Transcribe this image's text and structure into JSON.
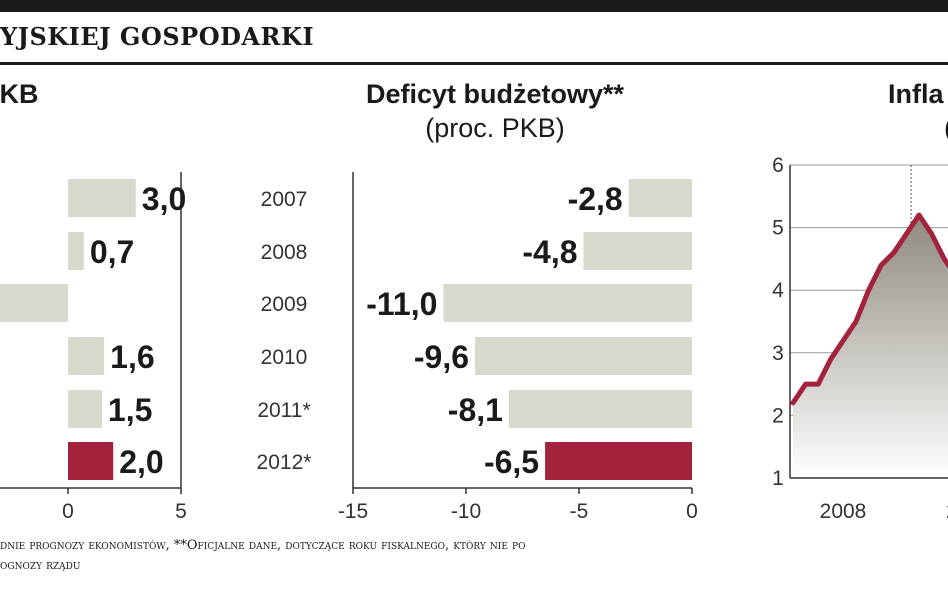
{
  "header": {
    "title": "YJSKIEJ GOSPODARKI"
  },
  "colors": {
    "bar": "#d9d8cc",
    "highlight": "#a3223c",
    "inflation_line": "#a3223c",
    "area_top": "#8f8a7e",
    "area_bottom": "#ffffff"
  },
  "chart_data": [
    {
      "type": "bar",
      "orientation": "horizontal",
      "title": "PKB",
      "subtitle": ")",
      "categories": [
        "",
        "",
        "",
        "",
        "",
        ""
      ],
      "values": [
        3.0,
        0.7,
        -6.0,
        1.6,
        1.5,
        2.0
      ],
      "value_labels": [
        "3,0",
        "0,7",
        "",
        "1,6",
        "1,5",
        "2,0"
      ],
      "highlight_index": 5,
      "xticks": [
        "0",
        "5"
      ],
      "xlim": [
        -6,
        5
      ]
    },
    {
      "type": "bar",
      "orientation": "horizontal",
      "title": "Deficyt budżetowy**",
      "subtitle": "(proc. PKB)",
      "categories": [
        "2007",
        "2008",
        "2009",
        "2010",
        "2011*",
        "2012*"
      ],
      "values": [
        -2.8,
        -4.8,
        -11.0,
        -9.6,
        -8.1,
        -6.5
      ],
      "value_labels": [
        "-2,8",
        "-4,8",
        "-11,0",
        "-9,6",
        "-8,1",
        "-6,5"
      ],
      "highlight_index": 5,
      "xticks": [
        "-15",
        "-10",
        "-5",
        "0"
      ],
      "xlim": [
        -15,
        0
      ]
    },
    {
      "type": "area",
      "title": "Infla",
      "subtitle": "(",
      "yticks": [
        "1",
        "2",
        "3",
        "4",
        "5",
        "6"
      ],
      "ylim": [
        1,
        6
      ],
      "xticks": [
        "2008",
        "2"
      ],
      "x": [
        0,
        1,
        2,
        3,
        4,
        5,
        6,
        7,
        8,
        9,
        10,
        11,
        12,
        13,
        14,
        15,
        16,
        17,
        18,
        19,
        20,
        21,
        22,
        23,
        24,
        25
      ],
      "values": [
        2.2,
        2.5,
        2.5,
        2.9,
        3.2,
        3.5,
        4.0,
        4.4,
        4.6,
        4.9,
        5.2,
        4.9,
        4.5,
        4.2,
        4.0,
        3.5,
        3.0,
        3.0,
        3.2,
        3.1,
        2.8,
        2.3,
        2.4,
        2.5,
        2.5,
        2.5
      ]
    }
  ],
  "footnote": {
    "line1": "dnie prognozy ekonomistów, **Oficjalne dane, dotyczące roku fiskalnego, który nie po",
    "line2": "ognozy rządu"
  }
}
